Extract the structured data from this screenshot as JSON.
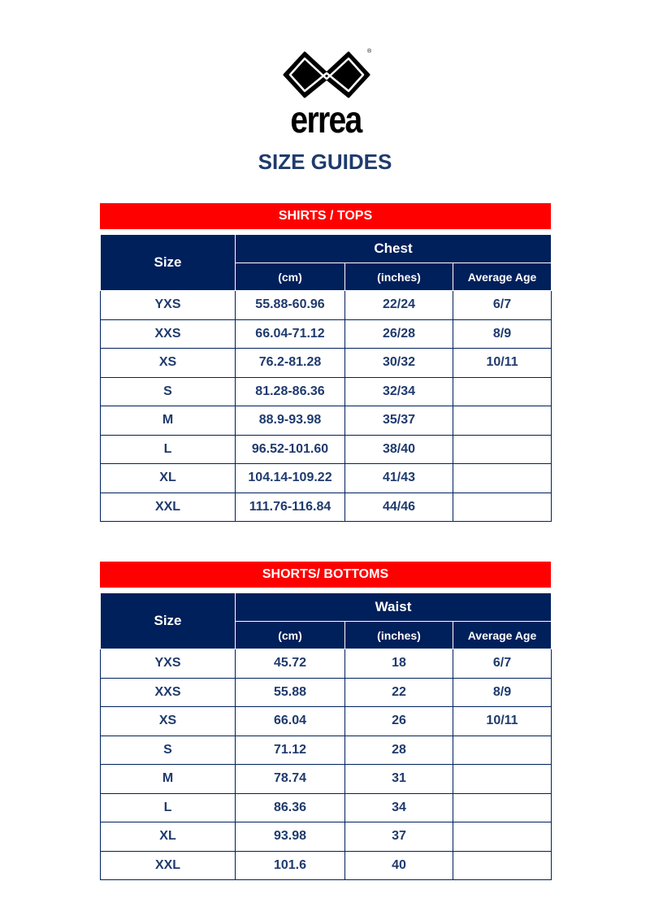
{
  "logo": {
    "text": "errea",
    "registered": "®"
  },
  "title": "SIZE GUIDES",
  "tables": [
    {
      "section": "SHIRTS / TOPS",
      "size_header": "Size",
      "measure_header": "Chest",
      "sub_headers": [
        "(cm)",
        "(inches)",
        "Average Age"
      ],
      "rows": [
        [
          "YXS",
          "55.88-60.96",
          "22/24",
          "6/7"
        ],
        [
          "XXS",
          "66.04-71.12",
          "26/28",
          "8/9"
        ],
        [
          "XS",
          "76.2-81.28",
          "30/32",
          "10/11"
        ],
        [
          "S",
          "81.28-86.36",
          "32/34",
          ""
        ],
        [
          "M",
          "88.9-93.98",
          "35/37",
          ""
        ],
        [
          "L",
          "96.52-101.60",
          "38/40",
          ""
        ],
        [
          "XL",
          "104.14-109.22",
          "41/43",
          ""
        ],
        [
          "XXL",
          "111.76-116.84",
          "44/46",
          ""
        ]
      ]
    },
    {
      "section": "SHORTS/ BOTTOMS",
      "size_header": "Size",
      "measure_header": "Waist",
      "sub_headers": [
        "(cm)",
        "(inches)",
        "Average Age"
      ],
      "rows": [
        [
          "YXS",
          "45.72",
          "18",
          "6/7"
        ],
        [
          "XXS",
          "55.88",
          "22",
          "8/9"
        ],
        [
          "XS",
          "66.04",
          "26",
          "10/11"
        ],
        [
          "S",
          "71.12",
          "28",
          ""
        ],
        [
          "M",
          "78.74",
          "31",
          ""
        ],
        [
          "L",
          "86.36",
          "34",
          ""
        ],
        [
          "XL",
          "93.98",
          "37",
          ""
        ],
        [
          "XXL",
          "101.6",
          "40",
          ""
        ]
      ]
    }
  ],
  "colors": {
    "red": "#ff0000",
    "navy": "#00205b",
    "text": "#1f3a6e"
  }
}
